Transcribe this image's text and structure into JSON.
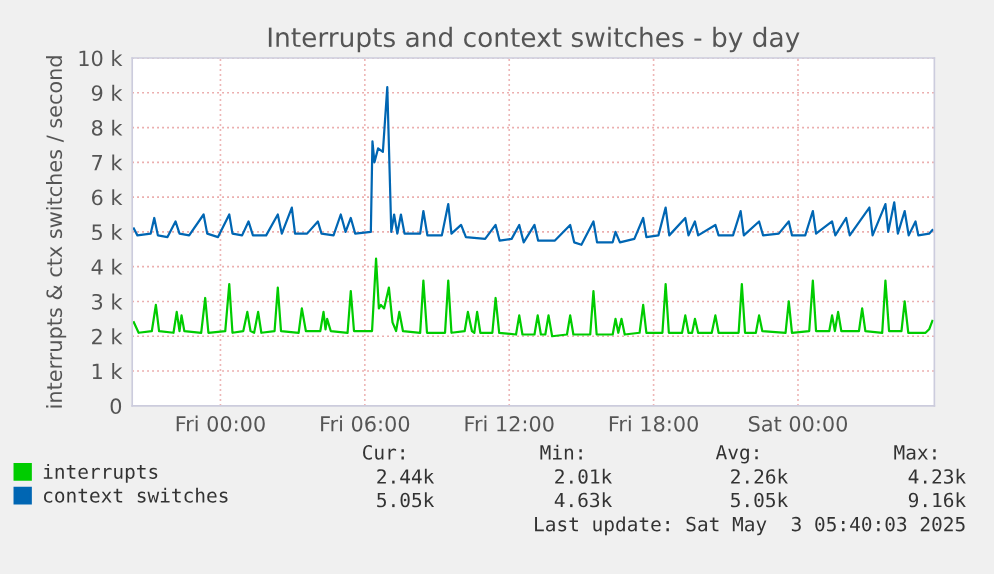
{
  "chart_data": {
    "type": "line",
    "title": "Interrupts and context switches - by day",
    "ylabel": "interrupts & ctx switches / second",
    "xlim": [
      "2025-05-01T20:20",
      "2025-05-03T05:40"
    ],
    "ylim": [
      0,
      10000
    ],
    "xticks": [
      {
        "value": "2025-05-02T00:00",
        "label": "Fri 00:00"
      },
      {
        "value": "2025-05-02T06:00",
        "label": "Fri 06:00"
      },
      {
        "value": "2025-05-02T12:00",
        "label": "Fri 12:00"
      },
      {
        "value": "2025-05-02T18:00",
        "label": "Fri 18:00"
      },
      {
        "value": "2025-05-03T00:00",
        "label": "Sat 00:00"
      }
    ],
    "yticks": [
      {
        "value": 0,
        "label": "0"
      },
      {
        "value": 1000,
        "label": "1 k"
      },
      {
        "value": 2000,
        "label": "2 k"
      },
      {
        "value": 3000,
        "label": "3 k"
      },
      {
        "value": 4000,
        "label": "4 k"
      },
      {
        "value": 5000,
        "label": "5 k"
      },
      {
        "value": 6000,
        "label": "6 k"
      },
      {
        "value": 7000,
        "label": "7 k"
      },
      {
        "value": 8000,
        "label": "8 k"
      },
      {
        "value": 9000,
        "label": "9 k"
      },
      {
        "value": 10000,
        "label": "10 k"
      }
    ],
    "grid": true,
    "legend": "bottom",
    "marker": "none",
    "line_style": "solid",
    "series": [
      {
        "name": "interrupts",
        "color": "#00cc00",
        "x": [
          "2025-05-01T20:24",
          "2025-05-01T20:36",
          "2025-05-01T21:09",
          "2025-05-01T21:19",
          "2025-05-01T21:27",
          "2025-05-01T22:03",
          "2025-05-01T22:11",
          "2025-05-01T22:18",
          "2025-05-01T22:23",
          "2025-05-01T22:30",
          "2025-05-01T23:12",
          "2025-05-01T23:22",
          "2025-05-01T23:30",
          "2025-05-02T00:12",
          "2025-05-02T00:22",
          "2025-05-02T00:30",
          "2025-05-02T00:57",
          "2025-05-02T01:07",
          "2025-05-02T01:15",
          "2025-05-02T01:24",
          "2025-05-02T01:34",
          "2025-05-02T01:42",
          "2025-05-02T02:15",
          "2025-05-02T02:23",
          "2025-05-02T02:31",
          "2025-05-02T03:15",
          "2025-05-02T03:23",
          "2025-05-02T03:33",
          "2025-05-02T04:09",
          "2025-05-02T04:17",
          "2025-05-02T04:22",
          "2025-05-02T04:26",
          "2025-05-02T04:35",
          "2025-05-02T05:17",
          "2025-05-02T05:25",
          "2025-05-02T05:33",
          "2025-05-02T06:18",
          "2025-05-02T06:28",
          "2025-05-02T06:35",
          "2025-05-02T06:40",
          "2025-05-02T06:48",
          "2025-05-02T07:00",
          "2025-05-02T07:09",
          "2025-05-02T07:18",
          "2025-05-02T07:26",
          "2025-05-02T07:35",
          "2025-05-02T08:18",
          "2025-05-02T08:26",
          "2025-05-02T08:35",
          "2025-05-02T09:20",
          "2025-05-02T09:28",
          "2025-05-02T09:36",
          "2025-05-02T10:09",
          "2025-05-02T10:17",
          "2025-05-02T10:27",
          "2025-05-02T10:33",
          "2025-05-02T10:40",
          "2025-05-02T10:48",
          "2025-05-02T11:18",
          "2025-05-02T11:26",
          "2025-05-02T11:35",
          "2025-05-02T12:17",
          "2025-05-02T12:25",
          "2025-05-02T12:33",
          "2025-05-02T13:03",
          "2025-05-02T13:11",
          "2025-05-02T13:19",
          "2025-05-02T13:30",
          "2025-05-02T13:38",
          "2025-05-02T13:47",
          "2025-05-02T14:24",
          "2025-05-02T14:32",
          "2025-05-02T14:40",
          "2025-05-02T15:22",
          "2025-05-02T15:30",
          "2025-05-02T15:38",
          "2025-05-02T16:18",
          "2025-05-02T16:25",
          "2025-05-02T16:32",
          "2025-05-02T16:40",
          "2025-05-02T16:48",
          "2025-05-02T17:25",
          "2025-05-02T17:34",
          "2025-05-02T17:42",
          "2025-05-02T18:22",
          "2025-05-02T18:30",
          "2025-05-02T18:38",
          "2025-05-02T19:11",
          "2025-05-02T19:19",
          "2025-05-02T19:27",
          "2025-05-02T19:36",
          "2025-05-02T19:43",
          "2025-05-02T19:51",
          "2025-05-02T20:25",
          "2025-05-02T20:34",
          "2025-05-02T20:42",
          "2025-05-02T21:32",
          "2025-05-02T21:40",
          "2025-05-02T21:48",
          "2025-05-02T22:15",
          "2025-05-02T22:23",
          "2025-05-02T22:31",
          "2025-05-02T23:29",
          "2025-05-02T23:37",
          "2025-05-02T23:45",
          "2025-05-03T00:28",
          "2025-05-03T00:37",
          "2025-05-03T00:45",
          "2025-05-03T01:18",
          "2025-05-03T01:25",
          "2025-05-03T01:32",
          "2025-05-03T01:40",
          "2025-05-03T01:48",
          "2025-05-03T02:32",
          "2025-05-03T02:40",
          "2025-05-03T02:48",
          "2025-05-03T03:30",
          "2025-05-03T03:38",
          "2025-05-03T03:47",
          "2025-05-03T04:18",
          "2025-05-03T04:26",
          "2025-05-03T04:35",
          "2025-05-03T05:18",
          "2025-05-03T05:27",
          "2025-05-03T05:35"
        ],
        "values": [
          2400,
          2100,
          2150,
          2900,
          2150,
          2100,
          2700,
          2150,
          2600,
          2150,
          2100,
          3100,
          2100,
          2150,
          3500,
          2100,
          2150,
          2700,
          2150,
          2100,
          2700,
          2100,
          2150,
          3400,
          2150,
          2100,
          2800,
          2150,
          2150,
          2700,
          2200,
          2500,
          2150,
          2100,
          3300,
          2150,
          2150,
          4230,
          2800,
          2900,
          2800,
          3400,
          2400,
          2150,
          2700,
          2150,
          2100,
          3600,
          2100,
          2100,
          3600,
          2100,
          2150,
          2700,
          2150,
          2100,
          2700,
          2100,
          2100,
          3100,
          2100,
          2050,
          2600,
          2050,
          2050,
          2600,
          2050,
          2050,
          2600,
          2000,
          2050,
          2600,
          2050,
          2050,
          3300,
          2050,
          2050,
          2500,
          2100,
          2500,
          2050,
          2100,
          2900,
          2100,
          2100,
          3500,
          2100,
          2100,
          2600,
          2100,
          2100,
          2500,
          2100,
          2100,
          2600,
          2100,
          2100,
          3500,
          2100,
          2100,
          2600,
          2150,
          2100,
          3000,
          2100,
          2150,
          3600,
          2150,
          2150,
          2600,
          2150,
          2700,
          2150,
          2150,
          2800,
          2150,
          2100,
          3600,
          2150,
          2150,
          3000,
          2100,
          2100,
          2200,
          2440
        ]
      },
      {
        "name": "context switches",
        "color": "#0066b3",
        "x": [
          "2025-05-01T20:24",
          "2025-05-01T20:33",
          "2025-05-01T21:06",
          "2025-05-01T21:15",
          "2025-05-01T21:24",
          "2025-05-01T21:48",
          "2025-05-01T22:08",
          "2025-05-01T22:18",
          "2025-05-01T22:42",
          "2025-05-01T23:18",
          "2025-05-01T23:27",
          "2025-05-01T23:54",
          "2025-05-02T00:22",
          "2025-05-02T00:30",
          "2025-05-02T00:54",
          "2025-05-02T01:10",
          "2025-05-02T01:21",
          "2025-05-02T01:54",
          "2025-05-02T02:23",
          "2025-05-02T02:33",
          "2025-05-02T02:58",
          "2025-05-02T03:06",
          "2025-05-02T03:36",
          "2025-05-02T04:03",
          "2025-05-02T04:12",
          "2025-05-02T04:42",
          "2025-05-02T05:00",
          "2025-05-02T05:12",
          "2025-05-02T05:25",
          "2025-05-02T05:36",
          "2025-05-02T06:15",
          "2025-05-02T06:19",
          "2025-05-02T06:24",
          "2025-05-02T06:33",
          "2025-05-02T06:45",
          "2025-05-02T06:56",
          "2025-05-02T07:06",
          "2025-05-02T07:13",
          "2025-05-02T07:21",
          "2025-05-02T07:30",
          "2025-05-02T07:39",
          "2025-05-02T08:18",
          "2025-05-02T08:26",
          "2025-05-02T08:36",
          "2025-05-02T09:12",
          "2025-05-02T09:28",
          "2025-05-02T09:36",
          "2025-05-02T10:00",
          "2025-05-02T10:12",
          "2025-05-02T11:00",
          "2025-05-02T11:26",
          "2025-05-02T11:36",
          "2025-05-02T12:06",
          "2025-05-02T12:25",
          "2025-05-02T12:36",
          "2025-05-02T13:03",
          "2025-05-02T13:12",
          "2025-05-02T13:54",
          "2025-05-02T14:32",
          "2025-05-02T14:42",
          "2025-05-02T15:00",
          "2025-05-02T15:30",
          "2025-05-02T15:39",
          "2025-05-02T16:18",
          "2025-05-02T16:25",
          "2025-05-02T16:36",
          "2025-05-02T17:12",
          "2025-05-02T17:34",
          "2025-05-02T17:42",
          "2025-05-02T18:12",
          "2025-05-02T18:30",
          "2025-05-02T18:39",
          "2025-05-02T19:19",
          "2025-05-02T19:27",
          "2025-05-02T19:43",
          "2025-05-02T19:51",
          "2025-05-02T20:34",
          "2025-05-02T20:42",
          "2025-05-02T21:18",
          "2025-05-02T21:37",
          "2025-05-02T21:45",
          "2025-05-02T22:23",
          "2025-05-02T22:33",
          "2025-05-02T23:12",
          "2025-05-02T23:37",
          "2025-05-02T23:45",
          "2025-05-03T00:18",
          "2025-05-03T00:37",
          "2025-05-03T00:45",
          "2025-05-03T01:25",
          "2025-05-03T01:33",
          "2025-05-03T02:00",
          "2025-05-03T02:09",
          "2025-05-03T02:58",
          "2025-05-03T03:06",
          "2025-05-03T03:38",
          "2025-05-03T03:45",
          "2025-05-03T04:00",
          "2025-05-03T04:09",
          "2025-05-03T04:26",
          "2025-05-03T04:36",
          "2025-05-03T04:53",
          "2025-05-03T05:00",
          "2025-05-03T05:27",
          "2025-05-03T05:35"
        ],
        "values": [
          5100,
          4900,
          4950,
          5400,
          4900,
          4850,
          5300,
          4950,
          4900,
          5500,
          4950,
          4850,
          5500,
          4950,
          4900,
          5300,
          4900,
          4900,
          5500,
          4950,
          5700,
          4950,
          4950,
          5300,
          4950,
          4900,
          5500,
          5000,
          5400,
          4950,
          5000,
          7600,
          7000,
          7400,
          7300,
          9160,
          5000,
          5500,
          4950,
          5500,
          4950,
          4950,
          5600,
          4900,
          4900,
          5800,
          4950,
          5200,
          4850,
          4800,
          5200,
          4750,
          4800,
          5200,
          4700,
          5200,
          4750,
          4750,
          5200,
          4700,
          4630,
          5300,
          4700,
          4700,
          5000,
          4700,
          4800,
          5400,
          4850,
          4900,
          5700,
          4900,
          5400,
          4900,
          5300,
          4900,
          5200,
          4900,
          4900,
          5600,
          4900,
          5300,
          4900,
          4950,
          5300,
          4900,
          4900,
          5600,
          4950,
          5300,
          4900,
          5400,
          4900,
          5700,
          4900,
          5800,
          5000,
          5850,
          4950,
          5600,
          4900,
          5300,
          4900,
          4950,
          5050
        ]
      }
    ],
    "annotations": [
      "Cur:",
      "Min:",
      "Avg:",
      "Max:",
      "2.44k",
      "2.01k",
      "2.26k",
      "4.23k",
      "5.05k",
      "4.63k",
      "5.05k",
      "9.16k",
      "Last update: Sat May  3 05:40:03 2025"
    ]
  }
}
